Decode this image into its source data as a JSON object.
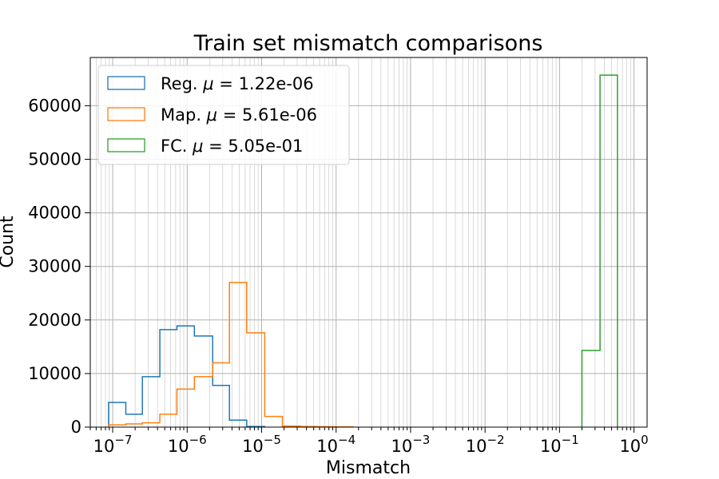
{
  "chart_data": {
    "type": "histogram",
    "title": "Train set mismatch comparisons",
    "xlabel": "Mismatch",
    "ylabel": "Count",
    "xscale": "log",
    "xlim": [
      5e-08,
      1.5
    ],
    "ylim": [
      0,
      69000
    ],
    "grid": "major and minor",
    "legend_position": "upper-left",
    "y_ticks": [
      "0",
      "10000",
      "20000",
      "30000",
      "40000",
      "50000",
      "60000"
    ],
    "x_ticks": [
      {
        "base": "10",
        "exp": "−7"
      },
      {
        "base": "10",
        "exp": "−6"
      },
      {
        "base": "10",
        "exp": "−5"
      },
      {
        "base": "10",
        "exp": "−4"
      },
      {
        "base": "10",
        "exp": "−3"
      },
      {
        "base": "10",
        "exp": "−2"
      },
      {
        "base": "10",
        "exp": "−1"
      },
      {
        "base": "10",
        "exp": "0"
      }
    ],
    "series": [
      {
        "name": "Reg.",
        "mu": "1.22e-06",
        "color": "#1f77b4",
        "bin_edges": [
          8.8e-08,
          1.5e-07,
          2.5e-07,
          4.3e-07,
          7.3e-07,
          1.25e-06,
          2.2e-06,
          3.7e-06,
          6.3e-06,
          1.1e-05
        ],
        "counts": [
          4600,
          2400,
          9400,
          18200,
          18900,
          17000,
          7800,
          1300,
          100
        ]
      },
      {
        "name": "Map.",
        "mu": "5.61e-06",
        "color": "#ff7f0e",
        "bin_edges": [
          8.8e-08,
          1.5e-07,
          2.5e-07,
          4.3e-07,
          7.3e-07,
          1.25e-06,
          2.2e-06,
          3.7e-06,
          6.3e-06,
          1.1e-05,
          1.9e-05,
          3.3e-05,
          5.6e-05,
          9.6e-05,
          0.00017
        ],
        "counts": [
          400,
          600,
          800,
          2400,
          7100,
          9400,
          12000,
          27000,
          17600,
          2000,
          200,
          100,
          80,
          40
        ]
      },
      {
        "name": "FC.",
        "mu": "5.05e-01",
        "color": "#2ca02c",
        "bin_edges": [
          0.2,
          0.35,
          0.6
        ],
        "counts": [
          14300,
          65700
        ]
      }
    ]
  }
}
